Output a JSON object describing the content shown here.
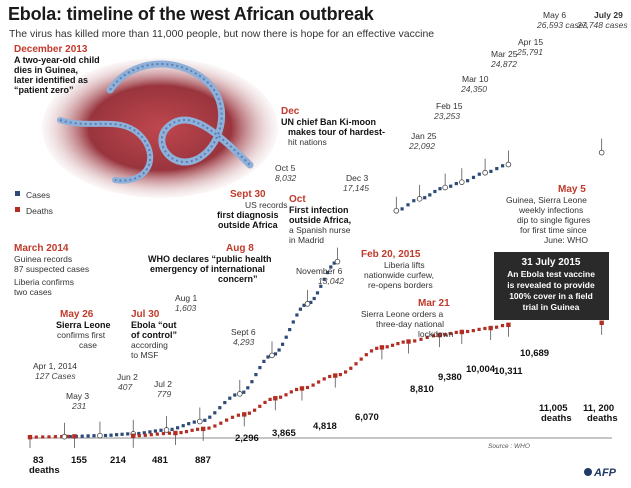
{
  "title": "Ebola: timeline of the west African outbreak",
  "subtitle": "The virus has killed more than 11,000 people, but now there is hope for an effective vaccine",
  "legend": {
    "cases": "Cases",
    "deaths": "Deaths"
  },
  "colors": {
    "cases": "#2e4a78",
    "deaths": "#b32e22",
    "accent": "#c0392b",
    "highlight": "#1f1f1f"
  },
  "source": "Source : WHO",
  "logo": "AFP",
  "chart_data": {
    "type": "scatter",
    "title": "Ebola: timeline of the west African outbreak",
    "xlabel": "",
    "ylabel": "",
    "xlim": [
      "2014-03-01",
      "2015-08-01"
    ],
    "ylim": [
      0,
      28000
    ],
    "series": [
      {
        "name": "Cases",
        "points": [
          {
            "date": "2014-04-01",
            "value": 127,
            "label": "127 Cases"
          },
          {
            "date": "2014-05-03",
            "value": 231,
            "label": "231"
          },
          {
            "date": "2014-06-02",
            "value": 407,
            "label": "407"
          },
          {
            "date": "2014-07-02",
            "value": 779,
            "label": "779"
          },
          {
            "date": "2014-08-01",
            "value": 1603,
            "label": "1,603"
          },
          {
            "date": "2014-09-06",
            "value": 4293,
            "label": "4,293"
          },
          {
            "date": "2014-10-05",
            "value": 8032,
            "label": "8,032"
          },
          {
            "date": "2014-11-06",
            "value": 13042,
            "label": "13,042"
          },
          {
            "date": "2014-12-03",
            "value": 17145,
            "label": "17,145"
          },
          {
            "date": "2015-01-25",
            "value": 22092,
            "label": "22,092"
          },
          {
            "date": "2015-02-15",
            "value": 23253,
            "label": "23,253"
          },
          {
            "date": "2015-03-10",
            "value": 24350,
            "label": "24,350"
          },
          {
            "date": "2015-03-25",
            "value": 24872,
            "label": "24,872"
          },
          {
            "date": "2015-04-15",
            "value": 25791,
            "label": "25,791"
          },
          {
            "date": "2015-05-06",
            "value": 26593,
            "label": "26,593 cases"
          },
          {
            "date": "2015-07-29",
            "value": 27748,
            "label": "27,748 cases"
          }
        ]
      },
      {
        "name": "Deaths",
        "points": [
          {
            "date": "2014-03-01",
            "value": 83,
            "label": "83 deaths"
          },
          {
            "date": "2014-04-10",
            "value": 155,
            "label": "155"
          },
          {
            "date": "2014-06-02",
            "value": 214,
            "label": "214"
          },
          {
            "date": "2014-07-10",
            "value": 481,
            "label": "481"
          },
          {
            "date": "2014-08-04",
            "value": 887,
            "label": "887"
          },
          {
            "date": "2014-09-10",
            "value": 2296,
            "label": "2,296"
          },
          {
            "date": "2014-10-08",
            "value": 3865,
            "label": "3,865"
          },
          {
            "date": "2014-11-01",
            "value": 4818,
            "label": "4,818"
          },
          {
            "date": "2014-12-01",
            "value": 6070,
            "label": "6,070"
          },
          {
            "date": "2015-01-12",
            "value": 8810,
            "label": "8,810"
          },
          {
            "date": "2015-02-05",
            "value": 9380,
            "label": "9,380"
          },
          {
            "date": "2015-03-05",
            "value": 10004,
            "label": "10,004"
          },
          {
            "date": "2015-03-25",
            "value": 10311,
            "label": "10,311"
          },
          {
            "date": "2015-04-20",
            "value": 10689,
            "label": "10,689"
          },
          {
            "date": "2015-05-06",
            "value": 11005,
            "label": "11,005 deaths"
          },
          {
            "date": "2015-07-29",
            "value": 11200,
            "label": "11, 200 deaths"
          }
        ]
      }
    ]
  },
  "events": {
    "dec2013": {
      "date": "December 2013",
      "text": [
        "A two-year-old child",
        "dies in Guinea,",
        "later identified as",
        "“patient zero”"
      ]
    },
    "mar2014": {
      "date": "March 2014",
      "text1": [
        "Guinea records",
        "87 suspected cases"
      ],
      "text2": [
        "Liberia confirms",
        "two cases"
      ]
    },
    "may26": {
      "date": "May 26",
      "text": [
        "Sierra Leone",
        "confirms first",
        "case"
      ]
    },
    "jul30": {
      "date": "Jul 30",
      "text": [
        "Ebola “out",
        "of control”",
        "according",
        "to MSF"
      ]
    },
    "aug8": {
      "date": "Aug 8",
      "text": [
        "WHO declares “public health",
        "emergency of international",
        "concern”"
      ]
    },
    "sep30": {
      "date": "Sept 30",
      "text": [
        "US records",
        "first diagnosis",
        "outside Africa"
      ]
    },
    "oct": {
      "date": "Oct",
      "text": [
        "First infection",
        "outside Africa,",
        "a Spanish nurse",
        "in Madrid"
      ]
    },
    "dec": {
      "date": "Dec",
      "text": [
        "UN chief Ban Ki-moon",
        "makes tour of hardest-",
        "hit nations"
      ]
    },
    "feb20": {
      "date": "Feb 20, 2015",
      "text": [
        "Liberia lifts",
        "nationwide curfew,",
        "re-opens borders"
      ]
    },
    "mar21": {
      "date": "Mar 21",
      "text": [
        "Sierra Leone orders a",
        "three-day national",
        "lockdown"
      ]
    },
    "may5": {
      "date": "May 5",
      "text": [
        "Guinea, Sierra Leone",
        "weekly infections",
        "dip to single figures",
        "for first time since",
        "June: WHO"
      ]
    },
    "jul31": {
      "date": "31 July 2015",
      "text": [
        "An Ebola test vaccine",
        "is revealed to provide",
        "100% cover in a field",
        "trial in Guinea"
      ]
    }
  },
  "case_labels": [
    {
      "date": "Apr 1, 2014",
      "value": "127 Cases"
    },
    {
      "date": "May 3",
      "value": "231"
    },
    {
      "date": "Jun 2",
      "value": "407"
    },
    {
      "date": "Jul 2",
      "value": "779"
    },
    {
      "date": "Aug 1",
      "value": "1,603"
    },
    {
      "date": "Sept 6",
      "value": "4,293"
    },
    {
      "date": "Oct 5",
      "value": "8,032"
    },
    {
      "date": "November 6",
      "value": "13,042"
    },
    {
      "date": "Dec 3",
      "value": "17,145"
    },
    {
      "date": "Jan 25",
      "value": "22,092"
    },
    {
      "date": "Feb 15",
      "value": "23,253"
    },
    {
      "date": "Mar 10",
      "value": "24,350"
    },
    {
      "date": "Mar 25",
      "value": "24,872"
    },
    {
      "date": "Apr 15",
      "value": "25,791"
    },
    {
      "date": "May 6",
      "value": "26,593 cases"
    },
    {
      "date": "July 29",
      "value": "27,748 cases"
    }
  ],
  "death_labels": [
    "83",
    "deaths",
    "155",
    "214",
    "481",
    "887",
    "2,296",
    "3,865",
    "4,818",
    "6,070",
    "8,810",
    "9,380",
    "10,004",
    "10,311",
    "10,689",
    "11,005",
    "deaths",
    "11, 200",
    "deaths"
  ]
}
